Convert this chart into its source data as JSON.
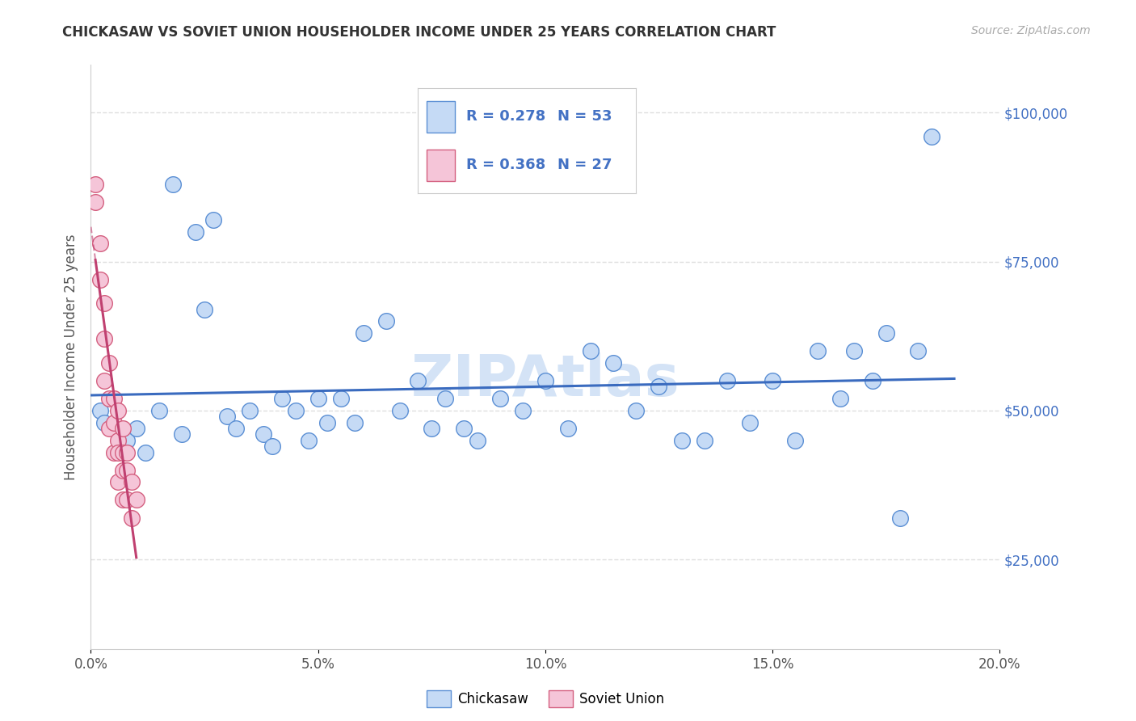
{
  "title": "CHICKASAW VS SOVIET UNION HOUSEHOLDER INCOME UNDER 25 YEARS CORRELATION CHART",
  "source": "Source: ZipAtlas.com",
  "ylabel": "Householder Income Under 25 years",
  "x_min": 0.0,
  "x_max": 0.2,
  "y_min": 10000,
  "y_max": 108000,
  "blue_R": "0.278",
  "blue_N": "53",
  "pink_R": "0.368",
  "pink_N": "27",
  "blue_fill": "#c5daf5",
  "pink_fill": "#f5c5d8",
  "blue_edge": "#5b8fd4",
  "pink_edge": "#d46080",
  "blue_line": "#3a6bbf",
  "pink_line": "#c04070",
  "watermark_color": "#d0e0f5",
  "grid_color": "#d8d8d8",
  "background_color": "#ffffff",
  "ytick_color": "#4472c4",
  "xtick_color": "#555555",
  "chickasaw_x": [
    0.002,
    0.003,
    0.008,
    0.01,
    0.012,
    0.015,
    0.018,
    0.02,
    0.023,
    0.025,
    0.027,
    0.03,
    0.032,
    0.035,
    0.038,
    0.04,
    0.042,
    0.045,
    0.048,
    0.05,
    0.052,
    0.055,
    0.058,
    0.06,
    0.065,
    0.068,
    0.072,
    0.075,
    0.078,
    0.082,
    0.085,
    0.09,
    0.095,
    0.1,
    0.105,
    0.11,
    0.115,
    0.12,
    0.125,
    0.13,
    0.135,
    0.14,
    0.145,
    0.15,
    0.155,
    0.16,
    0.165,
    0.168,
    0.172,
    0.175,
    0.178,
    0.182,
    0.185
  ],
  "chickasaw_y": [
    50000,
    48000,
    45000,
    47000,
    43000,
    50000,
    88000,
    46000,
    80000,
    67000,
    82000,
    49000,
    47000,
    50000,
    46000,
    44000,
    52000,
    50000,
    45000,
    52000,
    48000,
    52000,
    48000,
    63000,
    65000,
    50000,
    55000,
    47000,
    52000,
    47000,
    45000,
    52000,
    50000,
    55000,
    47000,
    60000,
    58000,
    50000,
    54000,
    45000,
    45000,
    55000,
    48000,
    55000,
    45000,
    60000,
    52000,
    60000,
    55000,
    63000,
    32000,
    60000,
    96000
  ],
  "soviet_x": [
    0.001,
    0.001,
    0.002,
    0.002,
    0.003,
    0.003,
    0.003,
    0.004,
    0.004,
    0.004,
    0.005,
    0.005,
    0.005,
    0.006,
    0.006,
    0.006,
    0.006,
    0.007,
    0.007,
    0.007,
    0.007,
    0.008,
    0.008,
    0.008,
    0.009,
    0.009,
    0.01
  ],
  "soviet_y": [
    85000,
    88000,
    78000,
    72000,
    68000,
    62000,
    55000,
    58000,
    52000,
    47000,
    52000,
    48000,
    43000,
    50000,
    45000,
    43000,
    38000,
    47000,
    43000,
    40000,
    35000,
    43000,
    40000,
    35000,
    38000,
    32000,
    35000
  ],
  "yticks": [
    25000,
    50000,
    75000,
    100000
  ],
  "ytick_labels": [
    "$25,000",
    "$50,000",
    "$75,000",
    "$100,000"
  ],
  "xticks": [
    0.0,
    0.05,
    0.1,
    0.15,
    0.2
  ],
  "xtick_labels": [
    "0.0%",
    "5.0%",
    "10.0%",
    "15.0%",
    "20.0%"
  ]
}
